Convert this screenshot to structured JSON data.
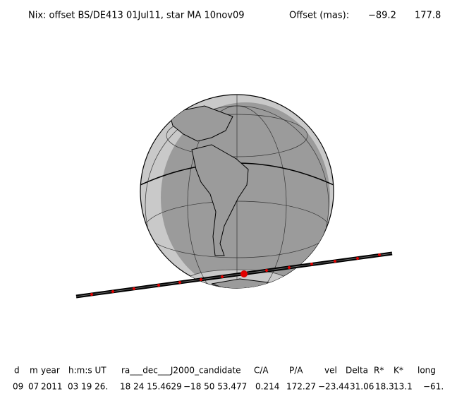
{
  "header": {
    "title": "Nix: offset BS/DE413 01Jul11, star MA 10nov09",
    "offset_label": "Offset (mas):",
    "offset_x": "−89.2",
    "offset_y": "177.8"
  },
  "table": {
    "headers": [
      "d",
      "m",
      "year",
      "h:m:s UT",
      "ra___dec___J2000_candidate",
      "C/A",
      "P/A",
      "vel",
      "Delta",
      "R*",
      "K*",
      "long"
    ],
    "values": [
      "09",
      "07",
      "2011",
      "03 19 26.",
      "18 24 15.4629",
      "−18 50  53.477",
      "0.214",
      "172.27",
      "−23.44",
      "31.06",
      "18.3",
      "13.1",
      "−61."
    ]
  }
}
